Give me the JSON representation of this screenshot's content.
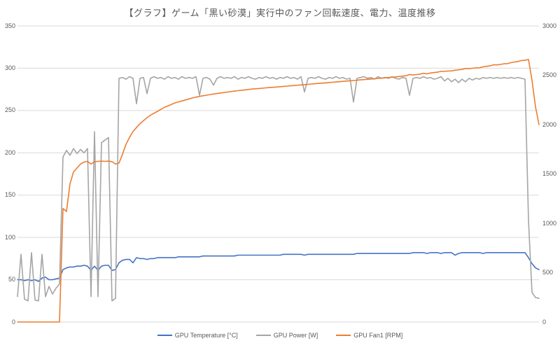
{
  "title": "【グラフ】ゲーム「黒い砂漠」実行中のファン回転速度、電力、温度推移",
  "colors": {
    "temperature": "#4472C4",
    "power": "#A5A5A5",
    "fan": "#ED7D31",
    "gridline": "#D9D9D9",
    "axis_text": "#595959",
    "title_text": "#595959",
    "background": "#FFFFFF"
  },
  "chart_data": {
    "type": "line",
    "title": "【グラフ】ゲーム「黒い砂漠」実行中のファン回転速度、電力、温度推移",
    "x_note": "time during gameplay session (no x-axis tick labels shown)",
    "grid": "horizontal-only",
    "legend_position": "bottom",
    "axis_left": {
      "min": 0,
      "max": 350,
      "ticks": [
        0,
        50,
        100,
        150,
        200,
        250,
        300,
        350
      ],
      "used_by": [
        "GPU Temperature [°C]",
        "GPU Power [W]"
      ]
    },
    "axis_right": {
      "min": 0,
      "max": 3000,
      "ticks": [
        0,
        500,
        1000,
        1500,
        2000,
        2500,
        3000
      ],
      "used_by": [
        "GPU Fan1 [RPM]"
      ]
    },
    "series": [
      {
        "name": "GPU Temperature [°C]",
        "axis": "left",
        "color": "#4472C4",
        "values": [
          50,
          50,
          49,
          50,
          49,
          50,
          48,
          52,
          53,
          50,
          50,
          51,
          52,
          62,
          64,
          65,
          65,
          66,
          66,
          67,
          66,
          61,
          66,
          61,
          66,
          67,
          67,
          61,
          62,
          70,
          73,
          74,
          74,
          70,
          76,
          75,
          75,
          74,
          75,
          75,
          76,
          76,
          76,
          76,
          76,
          76,
          77,
          77,
          77,
          77,
          77,
          77,
          77,
          78,
          78,
          78,
          78,
          78,
          78,
          78,
          78,
          78,
          78,
          79,
          79,
          79,
          79,
          79,
          79,
          79,
          79,
          79,
          79,
          79,
          79,
          79,
          80,
          80,
          80,
          80,
          80,
          80,
          79,
          80,
          80,
          80,
          80,
          80,
          80,
          80,
          80,
          80,
          80,
          80,
          80,
          80,
          80,
          81,
          81,
          81,
          81,
          81,
          81,
          81,
          81,
          81,
          81,
          81,
          81,
          81,
          81,
          81,
          81,
          82,
          82,
          82,
          82,
          81,
          82,
          82,
          82,
          81,
          82,
          82,
          82,
          79,
          81,
          82,
          82,
          82,
          82,
          82,
          82,
          81,
          82,
          82,
          82,
          82,
          82,
          82,
          82,
          82,
          82,
          82,
          82,
          82,
          76,
          69,
          64,
          62
        ]
      },
      {
        "name": "GPU Power [W]",
        "axis": "left",
        "color": "#A5A5A5",
        "values": [
          30,
          80,
          27,
          25,
          82,
          26,
          25,
          80,
          30,
          42,
          33,
          40,
          45,
          195,
          203,
          197,
          205,
          199,
          204,
          200,
          205,
          30,
          225,
          30,
          212,
          215,
          218,
          25,
          28,
          288,
          289,
          287,
          290,
          288,
          258,
          288,
          289,
          270,
          288,
          290,
          288,
          289,
          287,
          290,
          288,
          289,
          287,
          290,
          288,
          289,
          288,
          290,
          268,
          288,
          289,
          287,
          280,
          288,
          290,
          288,
          289,
          288,
          290,
          287,
          289,
          288,
          290,
          288,
          287,
          289,
          288,
          290,
          288,
          289,
          287,
          289,
          288,
          290,
          288,
          289,
          287,
          290,
          272,
          288,
          289,
          288,
          290,
          288,
          287,
          289,
          288,
          290,
          288,
          289,
          287,
          288,
          260,
          288,
          289,
          290,
          288,
          289,
          287,
          290,
          288,
          289,
          288,
          290,
          288,
          287,
          289,
          288,
          268,
          288,
          289,
          288,
          290,
          288,
          289,
          287,
          288,
          290,
          285,
          288,
          284,
          287,
          283,
          287,
          284,
          288,
          286,
          288,
          287,
          289,
          288,
          289,
          288,
          289,
          288,
          289,
          288,
          289,
          288,
          289,
          288,
          287,
          120,
          35,
          29,
          28
        ]
      },
      {
        "name": "GPU Fan1 [RPM]",
        "axis": "right",
        "color": "#ED7D31",
        "values": [
          0,
          0,
          0,
          0,
          0,
          0,
          0,
          0,
          0,
          0,
          0,
          0,
          0,
          1150,
          1120,
          1400,
          1520,
          1560,
          1600,
          1620,
          1628,
          1600,
          1625,
          1628,
          1630,
          1628,
          1630,
          1625,
          1600,
          1610,
          1700,
          1800,
          1870,
          1930,
          1970,
          2010,
          2040,
          2070,
          2095,
          2115,
          2135,
          2155,
          2175,
          2190,
          2205,
          2220,
          2230,
          2240,
          2250,
          2260,
          2270,
          2278,
          2286,
          2292,
          2298,
          2304,
          2310,
          2315,
          2320,
          2325,
          2330,
          2335,
          2340,
          2344,
          2348,
          2352,
          2356,
          2360,
          2363,
          2366,
          2369,
          2372,
          2375,
          2378,
          2381,
          2384,
          2387,
          2390,
          2393,
          2396,
          2399,
          2402,
          2405,
          2408,
          2411,
          2414,
          2417,
          2420,
          2423,
          2426,
          2429,
          2432,
          2435,
          2438,
          2441,
          2444,
          2447,
          2450,
          2453,
          2456,
          2459,
          2462,
          2465,
          2468,
          2471,
          2474,
          2477,
          2480,
          2483,
          2487,
          2491,
          2495,
          2508,
          2503,
          2507,
          2511,
          2520,
          2514,
          2523,
          2527,
          2531,
          2540,
          2539,
          2543,
          2544,
          2551,
          2555,
          2559,
          2568,
          2567,
          2571,
          2575,
          2576,
          2585,
          2590,
          2595,
          2606,
          2605,
          2610,
          2616,
          2618,
          2628,
          2634,
          2640,
          2650,
          2652,
          2660,
          2450,
          2180,
          2000
        ]
      }
    ]
  },
  "legend": {
    "items": [
      {
        "label": "GPU Temperature [°C]"
      },
      {
        "label": "GPU Power [W]"
      },
      {
        "label": "GPU Fan1 [RPM]"
      }
    ]
  }
}
